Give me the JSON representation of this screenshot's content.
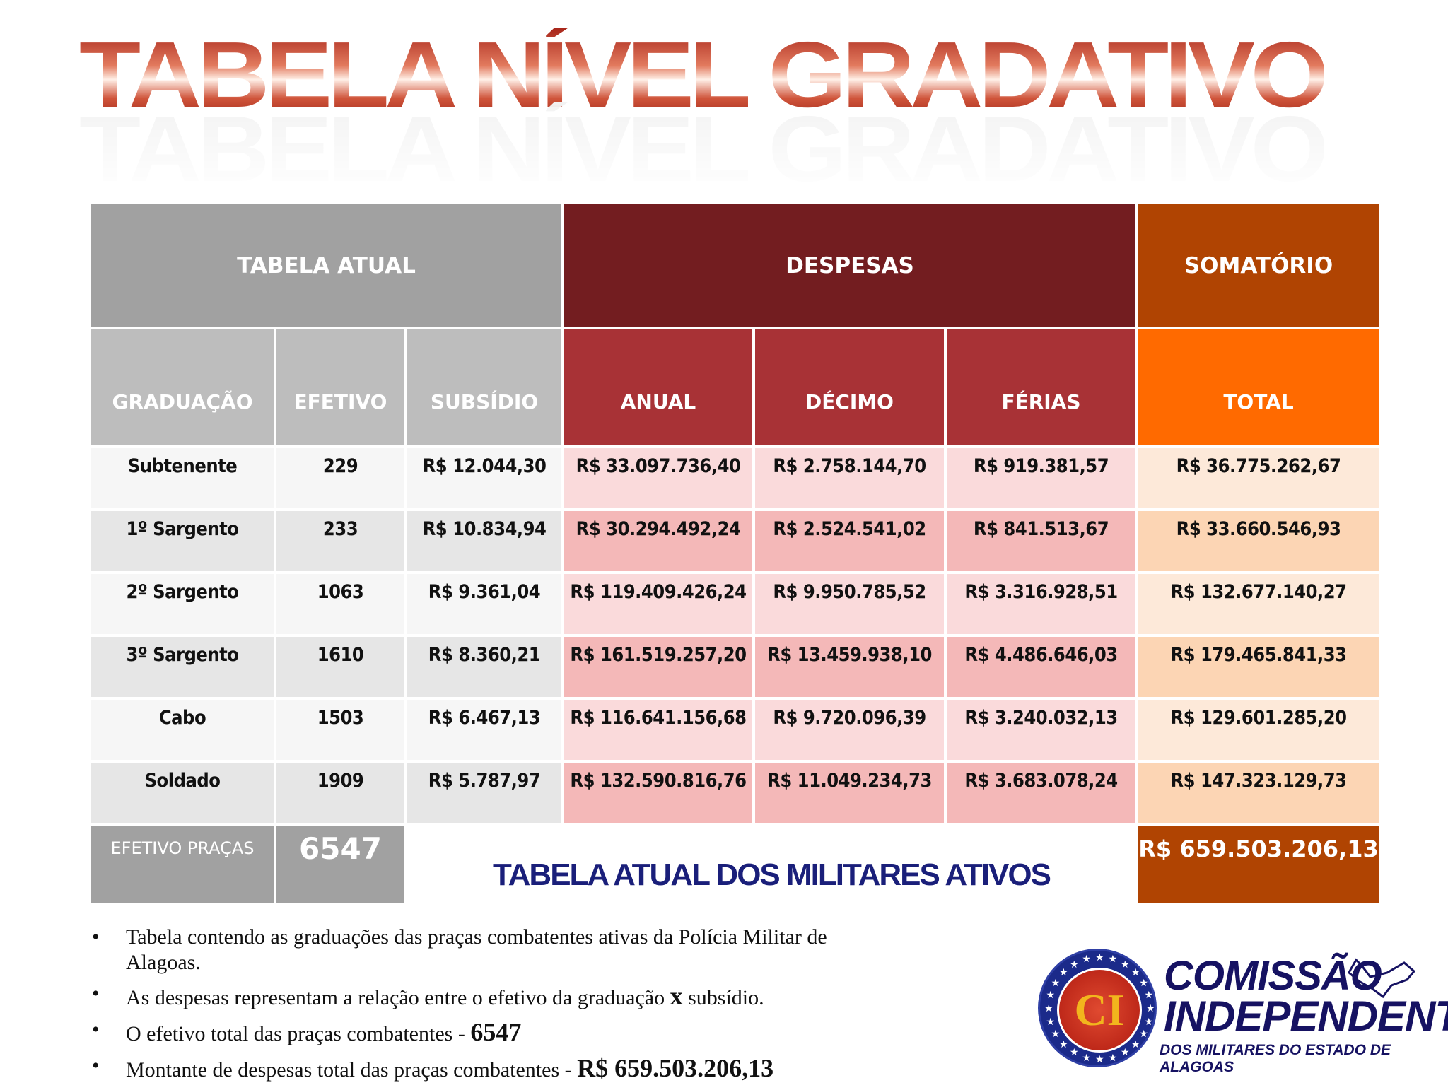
{
  "title": "TABELA NÍVEL GRADATIVO",
  "headers": {
    "tabela_atual": "TABELA ATUAL",
    "despesas": "DESPESAS",
    "somatorio": "SOMATÓRIO"
  },
  "columns": [
    "GRADUAÇÃO",
    "EFETIVO",
    "SUBSÍDIO",
    "ANUAL",
    "DÉCIMO",
    "FÉRIAS",
    "TOTAL"
  ],
  "rows": [
    [
      "Subtenente",
      "229",
      "R$ 12.044,30",
      "R$ 33.097.736,40",
      "R$ 2.758.144,70",
      "R$ 919.381,57",
      "R$ 36.775.262,67"
    ],
    [
      "1º Sargento",
      "233",
      "R$ 10.834,94",
      "R$ 30.294.492,24",
      "R$ 2.524.541,02",
      "R$ 841.513,67",
      "R$ 33.660.546,93"
    ],
    [
      "2º Sargento",
      "1063",
      "R$ 9.361,04",
      "R$ 119.409.426,24",
      "R$ 9.950.785,52",
      "R$ 3.316.928,51",
      "R$ 132.677.140,27"
    ],
    [
      "3º Sargento",
      "1610",
      "R$ 8.360,21",
      "R$ 161.519.257,20",
      "R$ 13.459.938,10",
      "R$ 4.486.646,03",
      "R$ 179.465.841,33"
    ],
    [
      "Cabo",
      "1503",
      "R$ 6.467,13",
      "R$ 116.641.156,68",
      "R$ 9.720.096,39",
      "R$ 3.240.032,13",
      "R$ 129.601.285,20"
    ],
    [
      "Soldado",
      "1909",
      "R$ 5.787,97",
      "R$ 132.590.816,76",
      "R$ 11.049.234,73",
      "R$ 3.683.078,24",
      "R$ 147.323.129,73"
    ]
  ],
  "footer": {
    "efetivo_label": "EFETIVO PRAÇAS",
    "efetivo_value": "6547",
    "caption": "TABELA ATUAL DOS MILITARES ATIVOS",
    "total": "R$ 659.503.206,13"
  },
  "notes": [
    {
      "text": "Tabela contendo as graduações das praças combatentes ativas da Polícia Militar de Alagoas.",
      "strong": ""
    },
    {
      "text": "As despesas representam a relação entre o efetivo da graduação",
      "strong": "x",
      "after": " subsídio."
    },
    {
      "text": "O efetivo total das praças combatentes - ",
      "strong": "6547"
    },
    {
      "text": "Montante de despesas total das praças combatentes - ",
      "strong": "R$ 659.503.206,13"
    }
  ],
  "logo": {
    "initials": "CI",
    "line1": "COMISSÃO",
    "line2": "INDEPENDENTE",
    "line3": "DOS MILITARES DO ESTADO DE ALAGOAS"
  }
}
